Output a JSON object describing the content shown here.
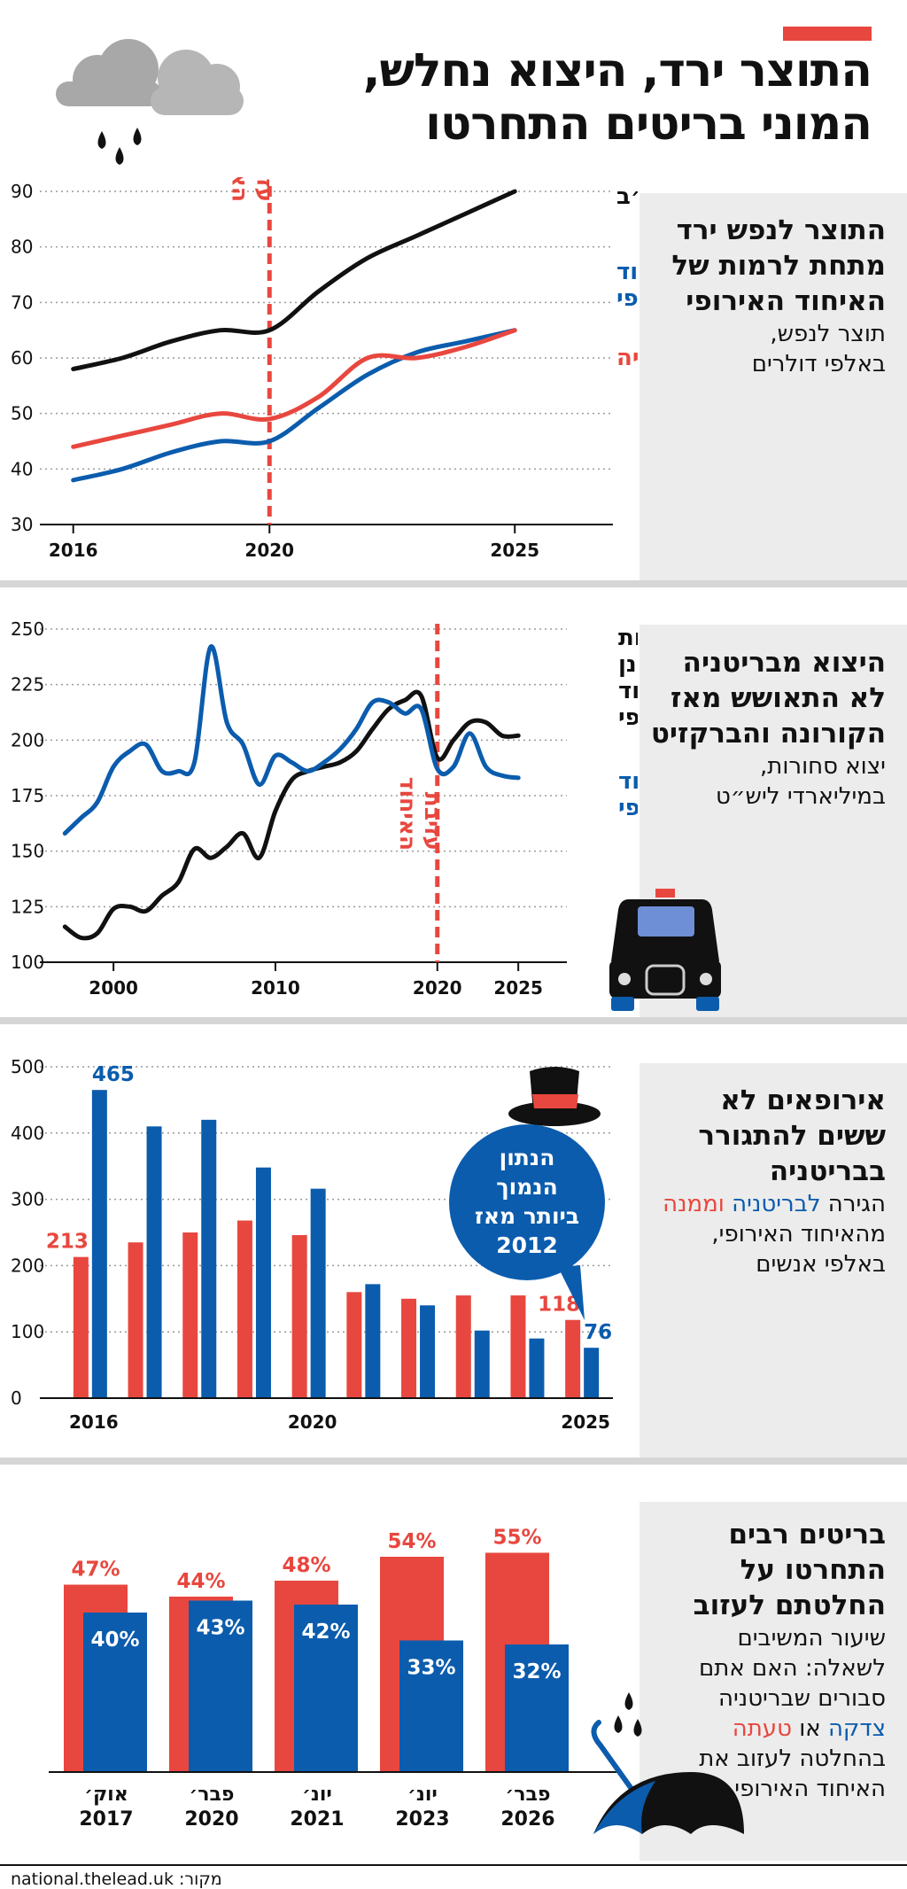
{
  "header": {
    "title_line1": "התוצר ירד, היצוא נחלש,",
    "title_line2": "המוני בריטים התחרטו"
  },
  "colors": {
    "red": "#e8473f",
    "blue": "#0b5cad",
    "black": "#111111",
    "panel": "#ececec"
  },
  "icons": [
    "cloud-rain-icon",
    "london-taxi-icon",
    "top-hat-icon",
    "umbrella-icon"
  ],
  "section1": {
    "title_lines": [
      "התוצר לנפש ירד",
      "מתחת לרמות של",
      "האיחוד האירופי"
    ],
    "sub_lines": [
      "תוצר לנפש,",
      "באלפי דולרים"
    ],
    "event_label_lines": [
      "עזיבת",
      "האיחוד"
    ]
  },
  "section2": {
    "title_lines": [
      "היצוא מבריטניה",
      "לא התאושש מאז",
      "הקורונה והברקזיט"
    ],
    "sub_lines": [
      "יצוא סחורות,",
      "במיליארדי ליש״ט"
    ],
    "event_label_lines": [
      "עזיבת",
      "האיחוד"
    ]
  },
  "section3": {
    "title_lines": [
      "אירופאים לא",
      "ששים להתגורר",
      "בבריטניה"
    ],
    "sub_line1_prefix": "הגירה ",
    "sub_line1_blue": "לבריטניה",
    "sub_line1_red": " וממנה",
    "sub_lines_rest": [
      "מהאיחוד האירופי,",
      "באלפי אנשים"
    ],
    "bubble_lines": [
      "הנתון",
      "הנמוך",
      "ביותר מאז",
      "2012"
    ]
  },
  "section4": {
    "title_lines": [
      "בריטים רבים",
      "התחרטו על",
      "החלטתם לעזוב"
    ],
    "sub_lines_a": [
      "שיעור המשיבים",
      "לשאלה: האם אתם",
      "סבורים שבריטניה"
    ],
    "sub_blue": "צדקה",
    "sub_mid": " או ",
    "sub_red": "טעתה",
    "sub_lines_b": [
      "בהחלטה לעזוב את",
      "האיחוד האירופי"
    ]
  },
  "footer": {
    "source": "מקור: national.thelead.uk"
  },
  "chart_data": [
    {
      "type": "line",
      "title": "התוצר לנפש ירד מתחת לרמות של האיחוד האירופי",
      "ylabel": "תוצר לנפש, באלפי דולרים",
      "ylim": [
        30,
        90
      ],
      "yticks": [
        "90",
        "80",
        "70",
        "60",
        "50",
        "40",
        "30"
      ],
      "xlim": [
        2015.5,
        2027
      ],
      "xticks": [
        {
          "v": 2016,
          "label": "2016"
        },
        {
          "v": 2020,
          "label": "2020"
        },
        {
          "v": 2025,
          "label": "2025"
        }
      ],
      "event_x": 2020,
      "series": [
        {
          "name": "ארה״ב",
          "color": "#111111",
          "x": [
            2016,
            2017,
            2018,
            2019,
            2020,
            2021,
            2022,
            2023,
            2024,
            2025
          ],
          "values": [
            58,
            60,
            63,
            65,
            65,
            72,
            78,
            82,
            86,
            90
          ]
        },
        {
          "name": "האיחוד האירופי",
          "color": "#0b5cad",
          "x": [
            2016,
            2017,
            2018,
            2019,
            2020,
            2021,
            2022,
            2023,
            2024,
            2025
          ],
          "values": [
            38,
            40,
            43,
            45,
            45,
            51,
            57,
            61,
            63,
            65
          ]
        },
        {
          "name": "בריטניה",
          "color": "#e8473f",
          "x": [
            2016,
            2017,
            2018,
            2019,
            2020,
            2021,
            2022,
            2023,
            2024,
            2025
          ],
          "values": [
            44,
            46,
            48,
            50,
            49,
            53,
            60,
            60,
            62,
            65
          ]
        }
      ]
    },
    {
      "type": "line",
      "title": "היצוא מבריטניה לא התאושש מאז הקורונה והברקזיט",
      "ylabel": "יצוא סחורות, במיליארדי ליש״ט",
      "ylim": [
        100,
        250
      ],
      "yticks": [
        "250",
        "225",
        "200",
        "175",
        "150",
        "125",
        "100"
      ],
      "xlim": [
        1996,
        2028
      ],
      "xticks": [
        {
          "v": 2000,
          "label": "2000"
        },
        {
          "v": 2010,
          "label": "2010"
        },
        {
          "v": 2020,
          "label": "2020"
        },
        {
          "v": 2025,
          "label": "2025"
        }
      ],
      "event_x": 2020,
      "series": [
        {
          "name": "מדינות שאינן איחוד אירופי",
          "color": "#111111",
          "x": [
            1997,
            1998,
            1999,
            2000,
            2001,
            2002,
            2003,
            2004,
            2005,
            2006,
            2007,
            2008,
            2009,
            2010,
            2011,
            2012,
            2013,
            2014,
            2015,
            2016,
            2017,
            2018,
            2019,
            2020,
            2021,
            2022,
            2023,
            2024,
            2025
          ],
          "values": [
            116,
            111,
            113,
            124,
            125,
            123,
            130,
            136,
            151,
            147,
            152,
            158,
            147,
            168,
            182,
            186,
            188,
            190,
            195,
            205,
            214,
            218,
            220,
            192,
            200,
            208,
            208,
            202,
            202
          ]
        },
        {
          "name": "איחוד אירופי",
          "color": "#0b5cad",
          "x": [
            1997,
            1998,
            1999,
            2000,
            2001,
            2002,
            2003,
            2004,
            2005,
            2006,
            2007,
            2008,
            2009,
            2010,
            2011,
            2012,
            2013,
            2014,
            2015,
            2016,
            2017,
            2018,
            2019,
            2020,
            2021,
            2022,
            2023,
            2024,
            2025
          ],
          "values": [
            158,
            165,
            172,
            188,
            195,
            198,
            186,
            186,
            190,
            242,
            208,
            198,
            180,
            193,
            190,
            186,
            190,
            196,
            205,
            217,
            217,
            212,
            214,
            187,
            188,
            203,
            188,
            184,
            183
          ]
        }
      ]
    },
    {
      "type": "bar",
      "title": "אירופאים לא ששים להתגורר בבריטניה",
      "ylabel": "באלפי אנשים",
      "ylim": [
        0,
        500
      ],
      "yticks": [
        "500",
        "400",
        "300",
        "200",
        "100",
        "0"
      ],
      "categories": [
        "2016",
        "2017",
        "2018",
        "2019",
        "2020",
        "2021",
        "2022",
        "2023",
        "2024",
        "2025"
      ],
      "category_labels": [
        "2016",
        "",
        "",
        "",
        "2020",
        "",
        "",
        "",
        "",
        "2025"
      ],
      "series": [
        {
          "name": "וממנה",
          "color": "#e8473f",
          "values": [
            213,
            235,
            250,
            268,
            246,
            160,
            150,
            155,
            155,
            118
          ]
        },
        {
          "name": "לבריטניה",
          "color": "#0b5cad",
          "values": [
            465,
            410,
            420,
            348,
            316,
            172,
            140,
            102,
            90,
            76
          ]
        }
      ],
      "data_labels": [
        {
          "series": 0,
          "index": 0,
          "text": "213"
        },
        {
          "series": 1,
          "index": 0,
          "text": "465"
        },
        {
          "series": 0,
          "index": 9,
          "text": "118"
        },
        {
          "series": 1,
          "index": 9,
          "text": "76"
        }
      ]
    },
    {
      "type": "bar",
      "title": "בריטים רבים התחרטו על החלטתם לעזוב",
      "ylim": [
        0,
        60
      ],
      "categories": [
        "אוק׳ 2017",
        "פבר׳ 2020",
        "יונ׳ 2021",
        "יונ׳ 2023",
        "פבר׳ 2026"
      ],
      "category_lines": [
        [
          "אוק׳",
          "2017"
        ],
        [
          "פבר׳",
          "2020"
        ],
        [
          "יונ׳",
          "2021"
        ],
        [
          "יונ׳",
          "2023"
        ],
        [
          "פבר׳",
          "2026"
        ]
      ],
      "series": [
        {
          "name": "טעתה",
          "color": "#e8473f",
          "values": [
            47,
            44,
            48,
            54,
            55
          ],
          "labels": [
            "47%",
            "44%",
            "48%",
            "54%",
            "55%"
          ]
        },
        {
          "name": "צדקה",
          "color": "#0b5cad",
          "values": [
            40,
            43,
            42,
            33,
            32
          ],
          "labels": [
            "40%",
            "43%",
            "42%",
            "33%",
            "32%"
          ]
        }
      ]
    }
  ]
}
